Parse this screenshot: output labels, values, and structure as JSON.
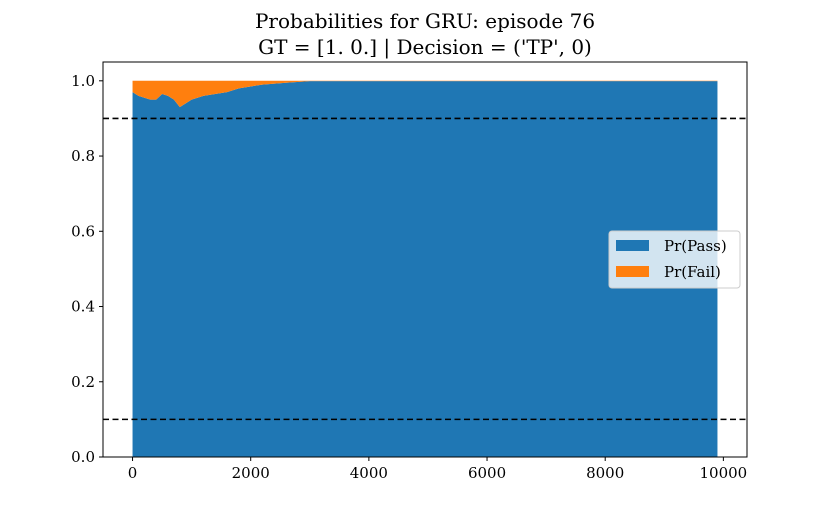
{
  "chart_data": {
    "type": "area",
    "title": "Probabilities for GRU: episode 76",
    "subtitle": "GT = [1. 0.] | Decision = ('TP', 0)",
    "xlabel": "",
    "ylabel": "",
    "xlim": [
      -500,
      10400
    ],
    "ylim": [
      0.0,
      1.05
    ],
    "x_ticks": [
      0,
      2000,
      4000,
      6000,
      8000,
      10000
    ],
    "y_ticks": [
      0.0,
      0.2,
      0.4,
      0.6,
      0.8,
      1.0
    ],
    "x_tick_labels": [
      "0",
      "2000",
      "4000",
      "6000",
      "8000",
      "10000"
    ],
    "y_tick_labels": [
      "0.0",
      "0.2",
      "0.4",
      "0.6",
      "0.8",
      "1.0"
    ],
    "x": [
      0,
      100,
      200,
      300,
      400,
      500,
      600,
      700,
      800,
      900,
      1000,
      1200,
      1400,
      1600,
      1800,
      2000,
      2200,
      2600,
      3000,
      9900
    ],
    "stacked": true,
    "series": [
      {
        "name": "Pr(Pass)",
        "color": "#1f77b4",
        "values": [
          0.97,
          0.96,
          0.955,
          0.95,
          0.95,
          0.965,
          0.96,
          0.95,
          0.93,
          0.94,
          0.95,
          0.96,
          0.965,
          0.97,
          0.98,
          0.985,
          0.99,
          0.995,
          0.999,
          0.999
        ]
      },
      {
        "name": "Pr(Fail)",
        "color": "#ff7f0e",
        "values": [
          0.03,
          0.04,
          0.045,
          0.05,
          0.05,
          0.035,
          0.04,
          0.05,
          0.07,
          0.06,
          0.05,
          0.04,
          0.035,
          0.03,
          0.02,
          0.015,
          0.01,
          0.005,
          0.001,
          0.001
        ]
      }
    ],
    "thresholds": [
      0.9,
      0.1
    ],
    "threshold_style": "dashed",
    "threshold_color": "#000000",
    "grid": false,
    "legend": "center-right"
  }
}
